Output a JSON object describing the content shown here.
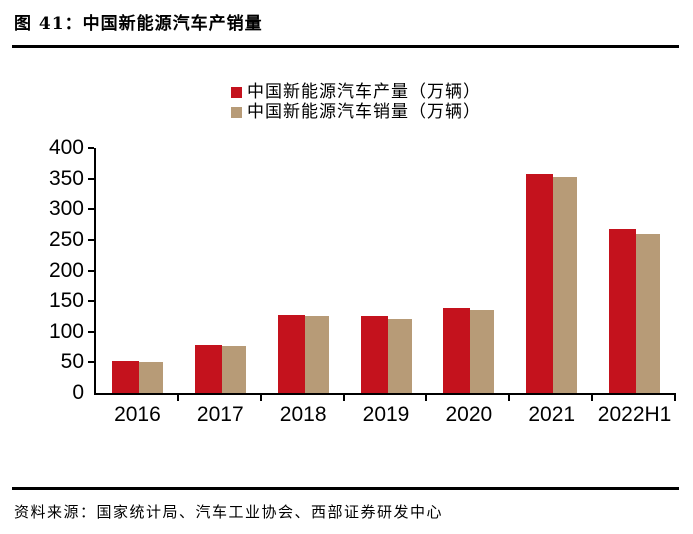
{
  "header": {
    "title": "图 41：中国新能源汽车产销量"
  },
  "chart_data": {
    "type": "bar",
    "title": "中国新能源汽车产销量",
    "categories": [
      "2016",
      "2017",
      "2018",
      "2019",
      "2020",
      "2021",
      "2022H1"
    ],
    "series": [
      {
        "name": "中国新能源汽车产量（万辆）",
        "color": "#c4121d",
        "values": [
          52,
          79,
          128,
          126,
          139,
          357,
          268
        ]
      },
      {
        "name": "中国新能源汽车销量（万辆）",
        "color": "#b79b77",
        "values": [
          50,
          77,
          125,
          121,
          136,
          352,
          260
        ]
      }
    ],
    "ylim": [
      0,
      400
    ],
    "yticks": [
      0,
      50,
      100,
      150,
      200,
      250,
      300,
      350,
      400
    ],
    "grid": false,
    "legend_position": "top-center"
  },
  "footer": {
    "source": "资料来源：国家统计局、汽车工业协会、西部证券研发中心"
  }
}
